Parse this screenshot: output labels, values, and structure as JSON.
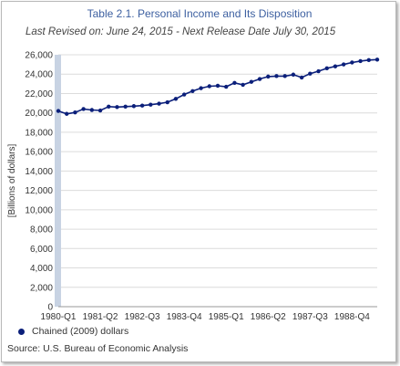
{
  "chart_data": {
    "type": "line",
    "title": "Table 2.1. Personal Income and Its Disposition",
    "subtitle": "Last Revised on: June 24, 2015 - Next Release Date July 30, 2015",
    "ylabel": "[Billions of dollars]",
    "xlabel": "",
    "ylim": [
      0,
      26000
    ],
    "y_ticks": [
      "0",
      "2,000",
      "4,000",
      "6,000",
      "8,000",
      "10,000",
      "12,000",
      "14,000",
      "16,000",
      "18,000",
      "20,000",
      "22,000",
      "24,000",
      "26,000"
    ],
    "x_ticks": [
      "1980-Q1",
      "1981-Q2",
      "1982-Q3",
      "1983-Q4",
      "1985-Q1",
      "1986-Q2",
      "1987-Q3",
      "1988-Q4"
    ],
    "x": [
      "1980-Q1",
      "1980-Q2",
      "1980-Q3",
      "1980-Q4",
      "1981-Q1",
      "1981-Q2",
      "1981-Q3",
      "1981-Q4",
      "1982-Q1",
      "1982-Q2",
      "1982-Q3",
      "1982-Q4",
      "1983-Q1",
      "1983-Q2",
      "1983-Q3",
      "1983-Q4",
      "1984-Q1",
      "1984-Q2",
      "1984-Q3",
      "1984-Q4",
      "1985-Q1",
      "1985-Q2",
      "1985-Q3",
      "1985-Q4",
      "1986-Q1",
      "1986-Q2",
      "1986-Q3",
      "1986-Q4",
      "1987-Q1",
      "1987-Q2",
      "1987-Q3",
      "1987-Q4",
      "1988-Q1",
      "1988-Q2",
      "1988-Q3",
      "1988-Q4",
      "1989-Q1",
      "1989-Q2",
      "1989-Q3"
    ],
    "series": [
      {
        "name": "Chained (2009) dollars",
        "color": "#0b1f7a",
        "values": [
          20200,
          19900,
          20050,
          20400,
          20300,
          20250,
          20650,
          20600,
          20650,
          20700,
          20750,
          20850,
          20950,
          21100,
          21450,
          21900,
          22250,
          22550,
          22750,
          22800,
          22700,
          23100,
          22900,
          23200,
          23500,
          23750,
          23800,
          23800,
          23950,
          23650,
          24050,
          24300,
          24600,
          24800,
          25000,
          25200,
          25350,
          25450,
          25500
        ]
      }
    ],
    "grid": "horizontal",
    "legend_position": "bottom-left",
    "legend": "Chained (2009) dollars",
    "source": "Source: U.S. Bureau of Economic Analysis"
  }
}
